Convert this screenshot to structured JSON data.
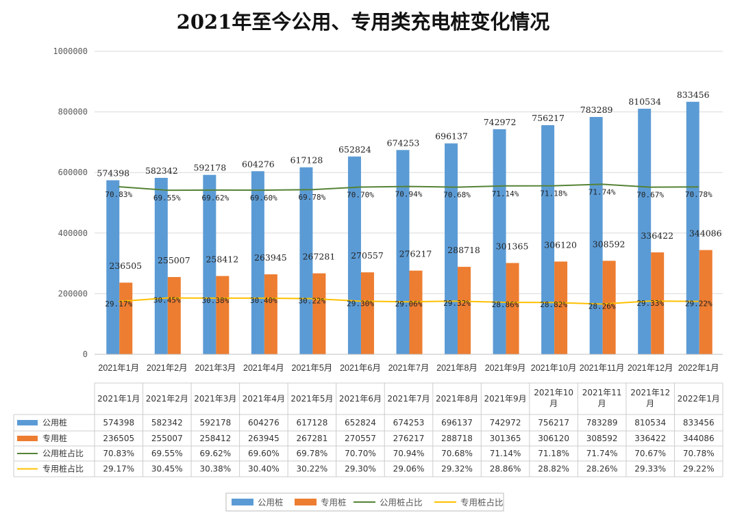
{
  "chart_data": {
    "type": "bar",
    "title": "2021年至今公用、专用类充电桩变化情况",
    "categories": [
      "2021年1月",
      "2021年2月",
      "2021年3月",
      "2021年4月",
      "2021年5月",
      "2021年6月",
      "2021年7月",
      "2021年8月",
      "2021年9月",
      "2021年10月",
      "2021年11月",
      "2021年12月",
      "2022年1月"
    ],
    "ylim": [
      0,
      1000000
    ],
    "yticks": [
      "0",
      "200000",
      "400000",
      "600000",
      "800000",
      "1000000"
    ],
    "secondary_axis_hidden": true,
    "grid": true,
    "legend_position": "bottom",
    "series": [
      {
        "name": "公用桩",
        "type": "bar",
        "axis": "primary",
        "color": "#5b9bd5",
        "values": [
          574398,
          582342,
          592178,
          604276,
          617128,
          652824,
          674253,
          696137,
          742972,
          756217,
          783289,
          810534,
          833456
        ]
      },
      {
        "name": "专用桩",
        "type": "bar",
        "axis": "primary",
        "color": "#ed7d31",
        "values": [
          236505,
          255007,
          258412,
          263945,
          267281,
          270557,
          276217,
          288718,
          301365,
          306120,
          308592,
          336422,
          344086
        ]
      },
      {
        "name": "公用桩占比",
        "type": "line",
        "axis": "secondary",
        "color": "#548235",
        "values": [
          "70.83%",
          "69.55%",
          "69.62%",
          "69.60%",
          "69.78%",
          "70.70%",
          "70.94%",
          "70.68%",
          "71.14%",
          "71.18%",
          "71.74%",
          "70.67%",
          "70.78%"
        ]
      },
      {
        "name": "专用桩占比",
        "type": "line",
        "axis": "secondary",
        "color": "#ffc000",
        "values": [
          "29.17%",
          "30.45%",
          "30.38%",
          "30.40%",
          "30.22%",
          "29.30%",
          "29.06%",
          "29.32%",
          "28.86%",
          "28.82%",
          "28.26%",
          "29.33%",
          "29.22%"
        ]
      }
    ],
    "data_table": {
      "header": [
        "2021年1月",
        "2021年2月",
        "2021年3月",
        "2021年4月",
        "2021年5月",
        "2021年6月",
        "2021年7月",
        "2021年8月",
        "2021年9月",
        "2021年10\n月",
        "2021年11\n月",
        "2021年12\n月",
        "2022年1月"
      ]
    }
  }
}
